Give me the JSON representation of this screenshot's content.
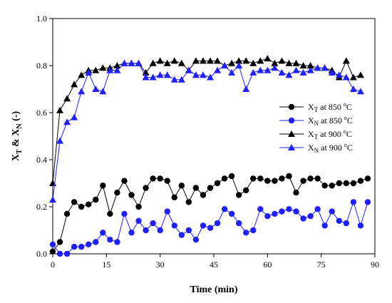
{
  "chart_data": {
    "type": "line",
    "xlabel": "Time (min)",
    "ylabel_parts": [
      "X",
      "T",
      " & X",
      "N",
      " (-)"
    ],
    "xlim": [
      0,
      90
    ],
    "ylim": [
      0,
      1.0
    ],
    "xticks": [
      0,
      15,
      30,
      45,
      60,
      75,
      90
    ],
    "yticks": [
      0.0,
      0.2,
      0.4,
      0.6,
      0.8,
      1.0
    ],
    "xtick_labels": [
      "0",
      "15",
      "30",
      "45",
      "60",
      "75",
      "90"
    ],
    "ytick_labels": [
      "0.0",
      "0.2",
      "0.4",
      "0.6",
      "0.8",
      "1.0"
    ],
    "grid": false,
    "legend_position": "right-middle",
    "series": [
      {
        "legend": {
          "main": "X",
          "sub": "T",
          "rest": " at 850 ",
          "deg": "o",
          "unit": "C"
        },
        "color": "#000000",
        "marker": "circle",
        "x": [
          0,
          2,
          4,
          6,
          8,
          10,
          12,
          14,
          16,
          18,
          20,
          22,
          24,
          26,
          28,
          30,
          32,
          34,
          36,
          38,
          40,
          42,
          44,
          46,
          48,
          50,
          52,
          54,
          56,
          58,
          60,
          62,
          64,
          66,
          68,
          70,
          72,
          74,
          76,
          78,
          80,
          82,
          84,
          86,
          88
        ],
        "y": [
          0.01,
          0.05,
          0.17,
          0.22,
          0.2,
          0.21,
          0.23,
          0.29,
          0.17,
          0.26,
          0.31,
          0.25,
          0.2,
          0.28,
          0.32,
          0.32,
          0.31,
          0.24,
          0.29,
          0.22,
          0.28,
          0.25,
          0.28,
          0.3,
          0.32,
          0.33,
          0.25,
          0.27,
          0.32,
          0.32,
          0.31,
          0.31,
          0.32,
          0.33,
          0.26,
          0.31,
          0.32,
          0.32,
          0.29,
          0.29,
          0.3,
          0.3,
          0.3,
          0.31,
          0.32
        ]
      },
      {
        "legend": {
          "main": "X",
          "sub": "N",
          "rest": " at 850 ",
          "deg": "o",
          "unit": "C"
        },
        "color": "#1f1fff",
        "marker": "circle",
        "x": [
          0,
          2,
          4,
          6,
          8,
          10,
          12,
          14,
          16,
          18,
          20,
          22,
          24,
          26,
          28,
          30,
          32,
          34,
          36,
          38,
          40,
          42,
          44,
          46,
          48,
          50,
          52,
          54,
          56,
          58,
          60,
          62,
          64,
          66,
          68,
          70,
          72,
          74,
          76,
          78,
          80,
          82,
          84,
          86,
          88
        ],
        "y": [
          0.04,
          0.0,
          0.0,
          0.03,
          0.03,
          0.04,
          0.05,
          0.09,
          0.06,
          0.05,
          0.17,
          0.09,
          0.14,
          0.1,
          0.13,
          0.1,
          0.18,
          0.12,
          0.08,
          0.1,
          0.06,
          0.12,
          0.11,
          0.13,
          0.19,
          0.17,
          0.13,
          0.09,
          0.1,
          0.19,
          0.16,
          0.17,
          0.18,
          0.19,
          0.18,
          0.15,
          0.16,
          0.19,
          0.12,
          0.18,
          0.14,
          0.13,
          0.22,
          0.12,
          0.22
        ]
      },
      {
        "legend": {
          "main": "X",
          "sub": "T",
          "rest": " at 900 ",
          "deg": "o",
          "unit": "C"
        },
        "color": "#000000",
        "marker": "triangle",
        "x": [
          0,
          2,
          4,
          6,
          8,
          10,
          12,
          14,
          16,
          18,
          20,
          22,
          24,
          26,
          28,
          30,
          32,
          34,
          36,
          38,
          40,
          42,
          44,
          46,
          48,
          50,
          52,
          54,
          56,
          58,
          60,
          62,
          64,
          66,
          68,
          70,
          72,
          74,
          76,
          78,
          80,
          82,
          84,
          86
        ],
        "y": [
          0.3,
          0.61,
          0.66,
          0.72,
          0.76,
          0.78,
          0.78,
          0.79,
          0.79,
          0.8,
          0.81,
          0.81,
          0.81,
          0.77,
          0.81,
          0.82,
          0.81,
          0.82,
          0.81,
          0.78,
          0.82,
          0.82,
          0.82,
          0.82,
          0.8,
          0.81,
          0.82,
          0.82,
          0.81,
          0.82,
          0.83,
          0.81,
          0.82,
          0.81,
          0.81,
          0.8,
          0.8,
          0.79,
          0.79,
          0.78,
          0.75,
          0.82,
          0.75,
          0.76
        ]
      },
      {
        "legend": {
          "main": "X",
          "sub": "N",
          "rest": " at 900 ",
          "deg": "o",
          "unit": "C"
        },
        "color": "#1f1fff",
        "marker": "triangle",
        "x": [
          0,
          2,
          4,
          6,
          8,
          10,
          12,
          14,
          16,
          18,
          20,
          22,
          24,
          26,
          28,
          30,
          32,
          34,
          36,
          38,
          40,
          42,
          44,
          46,
          48,
          50,
          52,
          54,
          56,
          58,
          60,
          62,
          64,
          66,
          68,
          70,
          72,
          74,
          76,
          78,
          80,
          82,
          84,
          86
        ],
        "y": [
          0.23,
          0.48,
          0.56,
          0.58,
          0.69,
          0.77,
          0.7,
          0.69,
          0.78,
          0.78,
          0.81,
          0.81,
          0.81,
          0.75,
          0.75,
          0.76,
          0.76,
          0.74,
          0.74,
          0.78,
          0.76,
          0.76,
          0.75,
          0.78,
          0.8,
          0.77,
          0.8,
          0.7,
          0.77,
          0.78,
          0.78,
          0.79,
          0.77,
          0.76,
          0.78,
          0.77,
          0.78,
          0.79,
          0.79,
          0.77,
          0.76,
          0.75,
          0.7,
          0.69
        ]
      }
    ]
  }
}
